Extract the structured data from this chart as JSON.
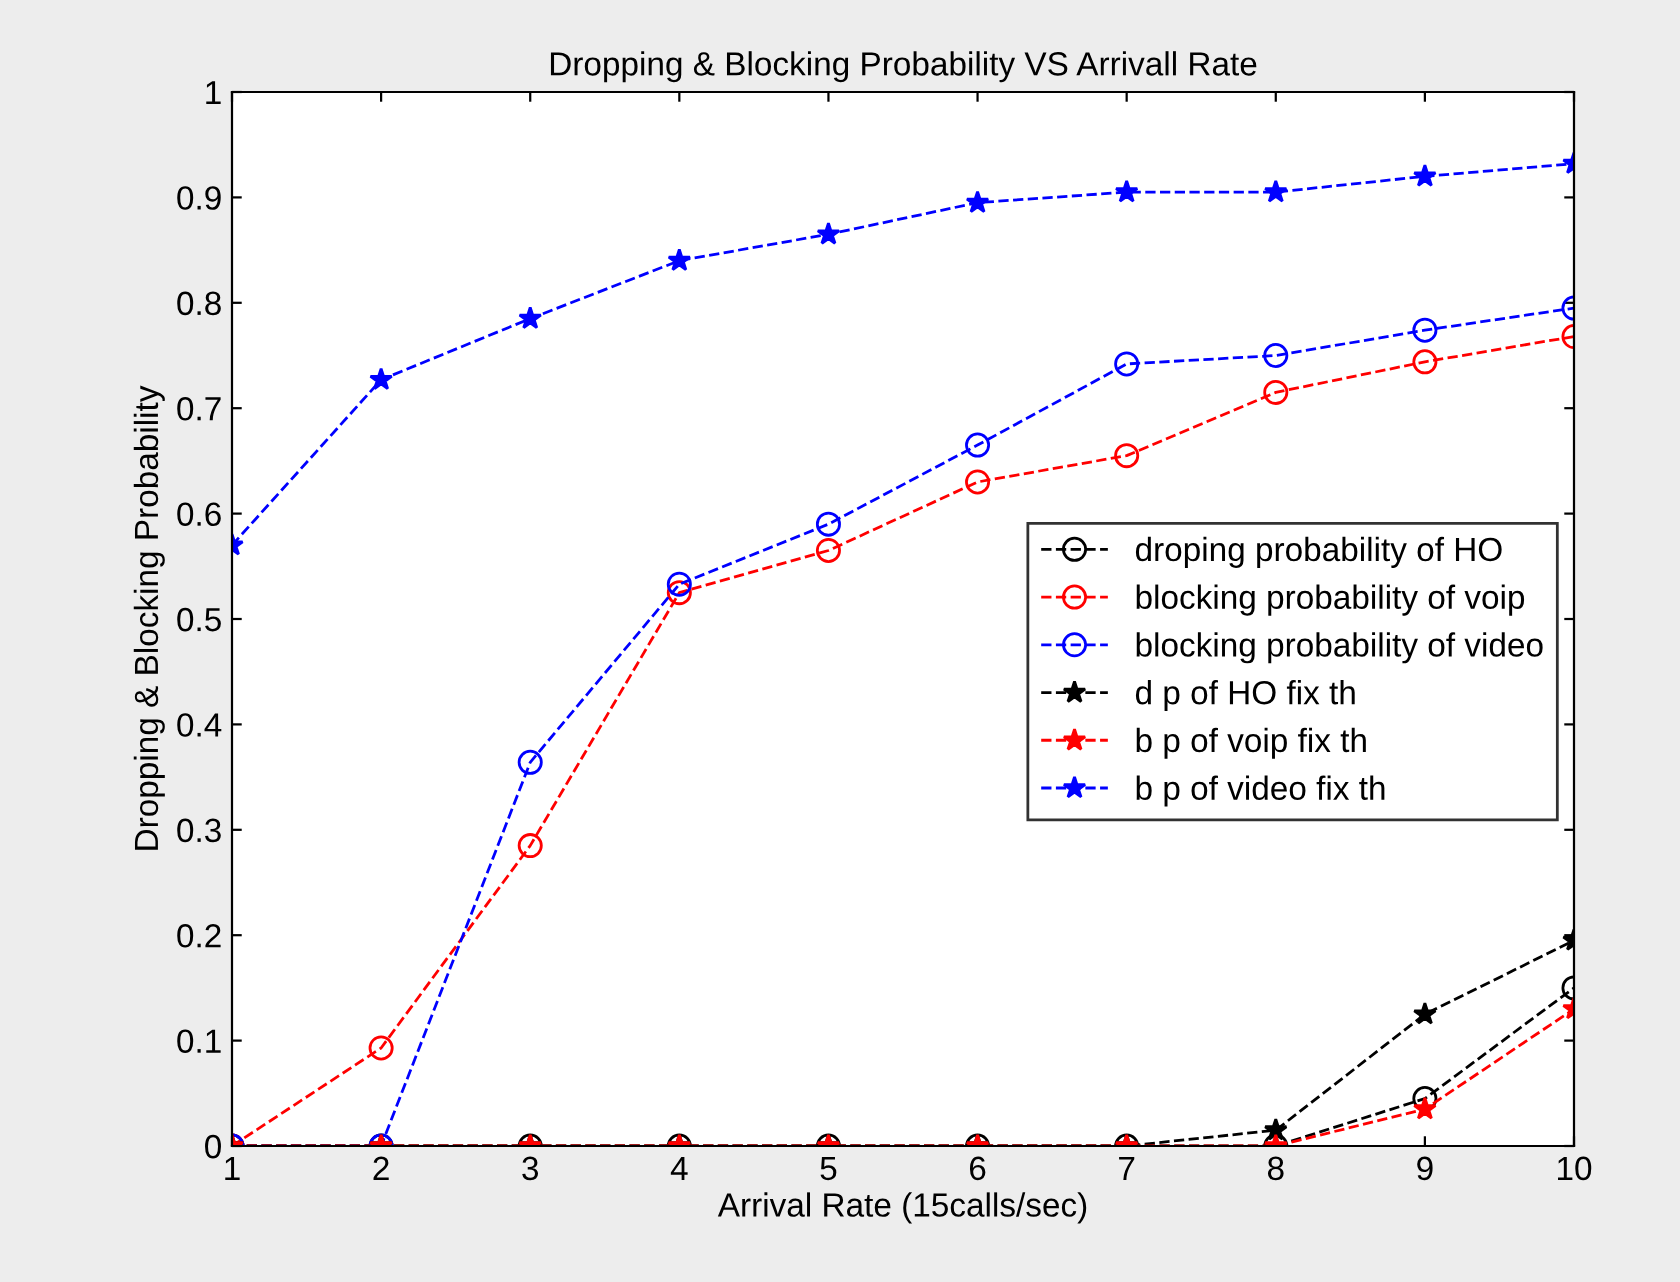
{
  "chart_data": {
    "type": "line",
    "title": "Dropping & Blocking Probability VS Arrivall Rate",
    "xlabel": "Arrival Rate (15calls/sec)",
    "ylabel": "Dropping & Blocking Probability",
    "x": [
      1,
      2,
      3,
      4,
      5,
      6,
      7,
      8,
      9,
      10
    ],
    "series": [
      {
        "name": "droping probability of HO",
        "color": "#000000",
        "marker": "circle",
        "values": [
          0,
          0,
          0,
          0,
          0,
          0,
          0,
          0,
          0.045,
          0.15
        ]
      },
      {
        "name": "blocking probability of voip",
        "color": "#ff0000",
        "marker": "circle",
        "values": [
          0,
          0.093,
          0.285,
          0.525,
          0.565,
          0.63,
          0.655,
          0.715,
          0.744,
          0.768
        ]
      },
      {
        "name": "blocking probability of video",
        "color": "#0000ff",
        "marker": "circle",
        "values": [
          0,
          0,
          0.364,
          0.533,
          0.59,
          0.665,
          0.742,
          0.75,
          0.774,
          0.795
        ]
      },
      {
        "name": "d p of HO fix th",
        "color": "#000000",
        "marker": "star",
        "values": [
          0,
          0,
          0,
          0,
          0,
          0,
          0,
          0.015,
          0.125,
          0.195
        ]
      },
      {
        "name": "b p of voip fix th",
        "color": "#ff0000",
        "marker": "star",
        "values": [
          0,
          0,
          0,
          0,
          0,
          0,
          0,
          0,
          0.035,
          0.13
        ]
      },
      {
        "name": "b p of video fix th",
        "color": "#0000ff",
        "marker": "star",
        "values": [
          0.57,
          0.727,
          0.785,
          0.84,
          0.865,
          0.895,
          0.905,
          0.905,
          0.92,
          0.932
        ]
      }
    ],
    "line_style": "dashed",
    "legend": "center right",
    "grid": false,
    "xlim": [
      1,
      10
    ],
    "xticks": [
      1,
      2,
      3,
      4,
      5,
      6,
      7,
      8,
      9,
      10
    ],
    "ylim": [
      0,
      1
    ],
    "yticks": [
      0,
      0.1,
      0.2,
      0.3,
      0.4,
      0.5,
      0.6,
      0.7,
      0.8,
      0.9,
      1
    ]
  }
}
